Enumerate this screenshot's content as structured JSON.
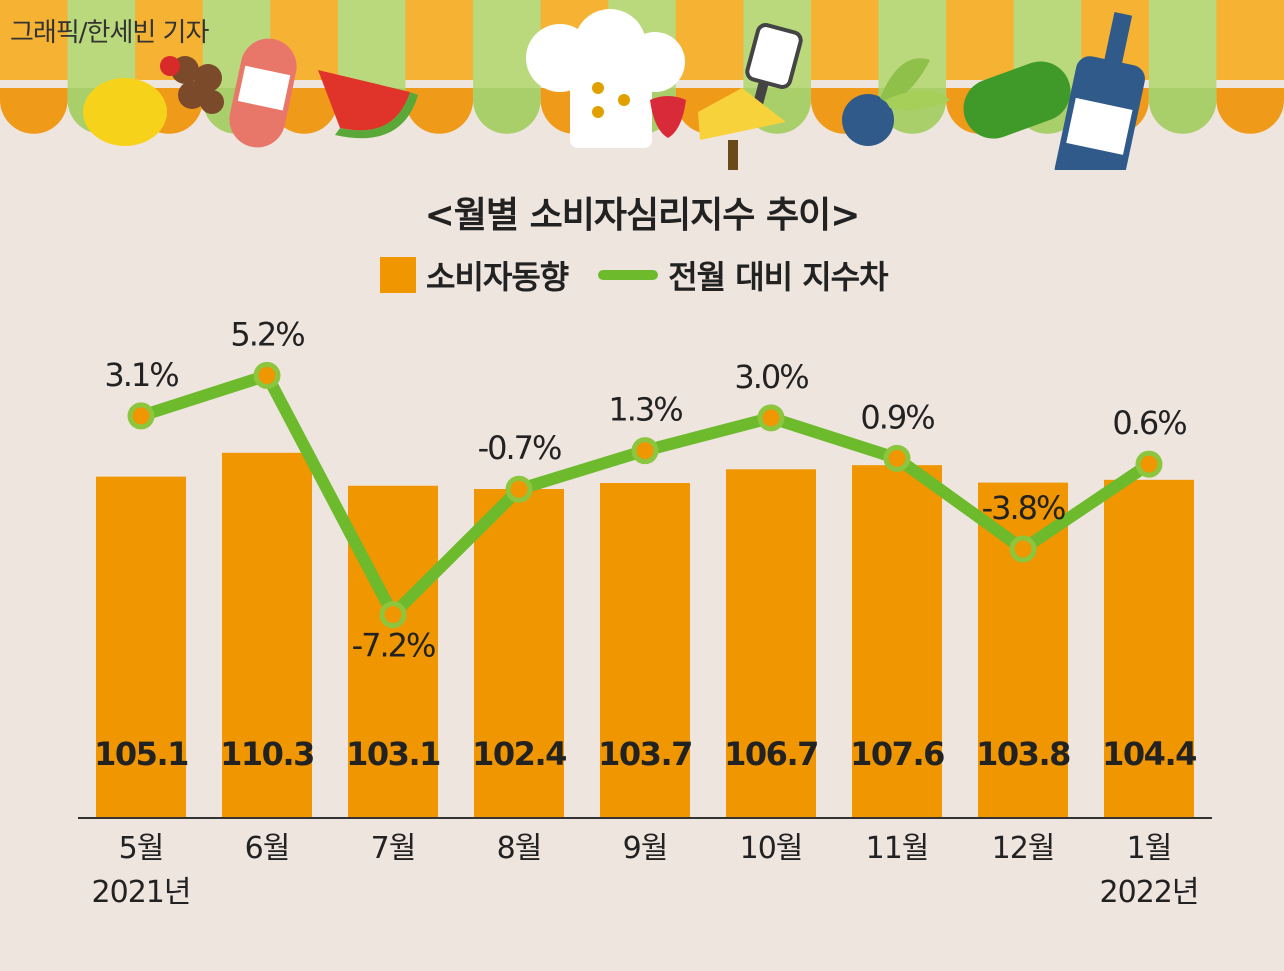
{
  "credit": "그래픽/한세빈 기자",
  "chart_data": {
    "type": "bar",
    "title": "<월별 소비자심리지수 추이>",
    "categories": [
      "5월",
      "6월",
      "7월",
      "8월",
      "9월",
      "10월",
      "11월",
      "12월",
      "1월"
    ],
    "year_labels": [
      "2021년",
      "",
      "",
      "",
      "",
      "",
      "",
      "",
      "2022년"
    ],
    "series": [
      {
        "name": "소비자동향",
        "type": "bar",
        "color": "#f09600",
        "values": [
          105.1,
          110.3,
          103.1,
          102.4,
          103.7,
          106.7,
          107.6,
          103.8,
          104.4
        ],
        "labels": [
          "105.1",
          "110.3",
          "103.1",
          "102.4",
          "103.7",
          "106.7",
          "107.6",
          "103.8",
          "104.4"
        ]
      },
      {
        "name": "전월 대비 지수차",
        "type": "line",
        "color": "#6dba2c",
        "values": [
          3.1,
          5.2,
          -7.2,
          -0.7,
          1.3,
          3.0,
          0.9,
          -3.8,
          0.6
        ],
        "labels": [
          "3.1%",
          "5.2%",
          "-7.2%",
          "-0.7%",
          "1.3%",
          "3.0%",
          "0.9%",
          "-3.8%",
          "0.6%"
        ]
      }
    ],
    "legend_position": "top-center",
    "grid": false
  }
}
